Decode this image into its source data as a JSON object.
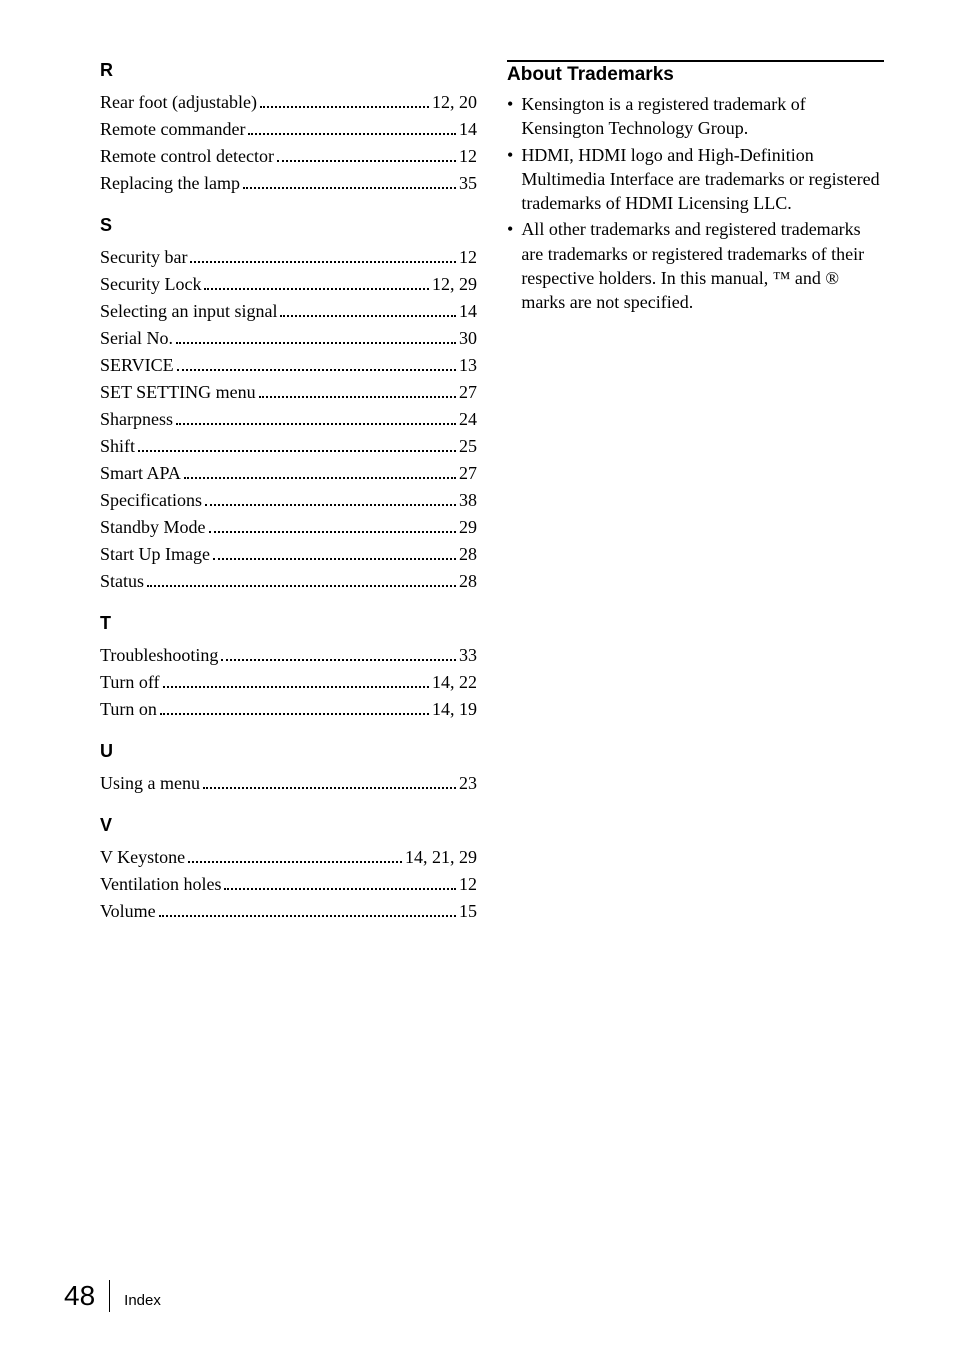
{
  "sections": [
    {
      "letter": "R",
      "items": [
        {
          "label": "Rear foot (adjustable)",
          "pages": "12, 20"
        },
        {
          "label": "Remote commander",
          "pages": "14"
        },
        {
          "label": "Remote control detector",
          "pages": "12"
        },
        {
          "label": "Replacing the lamp",
          "pages": "35"
        }
      ]
    },
    {
      "letter": "S",
      "items": [
        {
          "label": "Security bar",
          "pages": "12"
        },
        {
          "label": "Security Lock",
          "pages": "12, 29"
        },
        {
          "label": "Selecting an input signal",
          "pages": "14"
        },
        {
          "label": "Serial No.",
          "pages": "30"
        },
        {
          "label": "SERVICE",
          "pages": "13"
        },
        {
          "label": "SET SETTING menu",
          "pages": "27"
        },
        {
          "label": "Sharpness",
          "pages": "24"
        },
        {
          "label": "Shift",
          "pages": "25"
        },
        {
          "label": "Smart APA",
          "pages": "27"
        },
        {
          "label": "Specifications",
          "pages": "38"
        },
        {
          "label": "Standby Mode",
          "pages": "29"
        },
        {
          "label": "Start Up Image",
          "pages": "28"
        },
        {
          "label": "Status",
          "pages": "28"
        }
      ]
    },
    {
      "letter": "T",
      "items": [
        {
          "label": "Troubleshooting",
          "pages": "33"
        },
        {
          "label": "Turn off",
          "pages": "14, 22"
        },
        {
          "label": "Turn on",
          "pages": "14, 19"
        }
      ]
    },
    {
      "letter": "U",
      "items": [
        {
          "label": "Using a menu",
          "pages": "23"
        }
      ]
    },
    {
      "letter": "V",
      "items": [
        {
          "label": "V Keystone",
          "pages": "14, 21, 29"
        },
        {
          "label": "Ventilation holes",
          "pages": "12"
        },
        {
          "label": "Volume",
          "pages": "15"
        }
      ]
    }
  ],
  "about": {
    "heading": "About Trademarks",
    "bullets": [
      "Kensington is a registered trademark of Kensington Technology Group.",
      "HDMI, HDMI logo and High-Definition Multimedia Interface are trademarks or registered trademarks of HDMI Licensing LLC.",
      "All other trademarks and registered trademarks are trademarks or registered trademarks of their respective holders. In this manual, ™ and ® marks are not specified."
    ]
  },
  "footer": {
    "page": "48",
    "label": "Index"
  }
}
